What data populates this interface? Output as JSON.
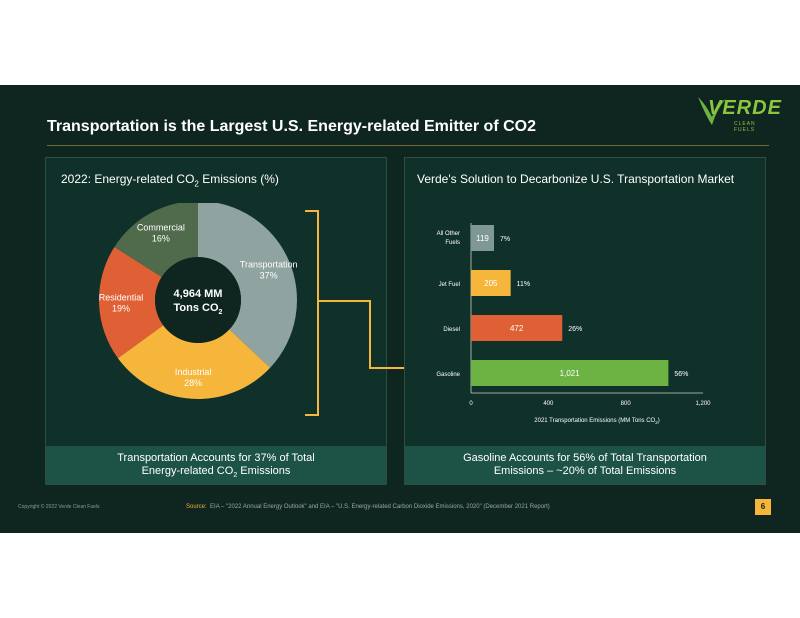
{
  "slide": {
    "title": "Transportation is the Largest U.S. Energy-related Emitter of CO2",
    "logo": {
      "name": "VERDE",
      "sub": "CLEAN FUELS"
    },
    "footer_copyright": "Copyright © 2022 Verde Clean Fuels",
    "source_label": "Source:",
    "source_text": "EIA – \"2022 Annual Energy Outlook\" and EIA – \"U.S. Energy-related Carbon Dioxide Emissions, 2020\" (December 2021 Report)",
    "page_number": "6"
  },
  "left_panel": {
    "heading_pre": "2022: Energy-related CO",
    "heading_sub": "2",
    "heading_post": " Emissions (%)",
    "caption_line1": "Transportation Accounts for 37% of Total",
    "caption_line2_pre": "Energy-related CO",
    "caption_line2_sub": "2",
    "caption_line2_post": " Emissions"
  },
  "right_panel": {
    "heading": "Verde's Solution to Decarbonize U.S. Transportation Market",
    "caption_line1": "Gasoline Accounts for 56% of Total Transportation",
    "caption_line2": "Emissions – ~20% of Total Emissions"
  },
  "colors": {
    "transportation": "#8fa3a0",
    "industrial": "#f5b63b",
    "residential": "#e06036",
    "commercial": "#4f6b4c",
    "gasoline": "#6cb344",
    "diesel": "#e06036",
    "jet_fuel": "#f5b63b",
    "other": "#7f9893",
    "bracket": "#f5b63b"
  },
  "chart_data": [
    {
      "type": "pie",
      "title": "2022: Energy-related CO2 Emissions (%)",
      "center_label_line1": "4,964 MM",
      "center_label_line2": "Tons CO",
      "center_label_sub": "2",
      "slices": [
        {
          "name": "Transportation",
          "value": 37,
          "label": "37%"
        },
        {
          "name": "Industrial",
          "value": 28,
          "label": "28%"
        },
        {
          "name": "Residential",
          "value": 19,
          "label": "19%"
        },
        {
          "name": "Commercial",
          "value": 16,
          "label": "16%"
        }
      ]
    },
    {
      "type": "bar",
      "orientation": "horizontal",
      "categories": [
        "All Other Fuels",
        "Jet Fuel",
        "Diesel",
        "Gasoline"
      ],
      "category_lines": [
        [
          "All Other",
          "Fuels"
        ],
        [
          "Jet Fuel"
        ],
        [
          "Diesel"
        ],
        [
          "Gasoline"
        ]
      ],
      "values": [
        119,
        205,
        472,
        1021
      ],
      "value_labels": [
        "119",
        "205",
        "472",
        "1,021"
      ],
      "share_labels": [
        "7%",
        "11%",
        "26%",
        "56%"
      ],
      "xlabel_pre": "2021 Transportation Emissions (MM Tons CO",
      "xlabel_sub": "2",
      "xlabel_post": ")",
      "xlim": [
        0,
        1200
      ],
      "xticks": [
        0,
        400,
        800,
        1200
      ],
      "xtick_labels": [
        "0",
        "400",
        "800",
        "1,200"
      ],
      "grid": false
    }
  ]
}
